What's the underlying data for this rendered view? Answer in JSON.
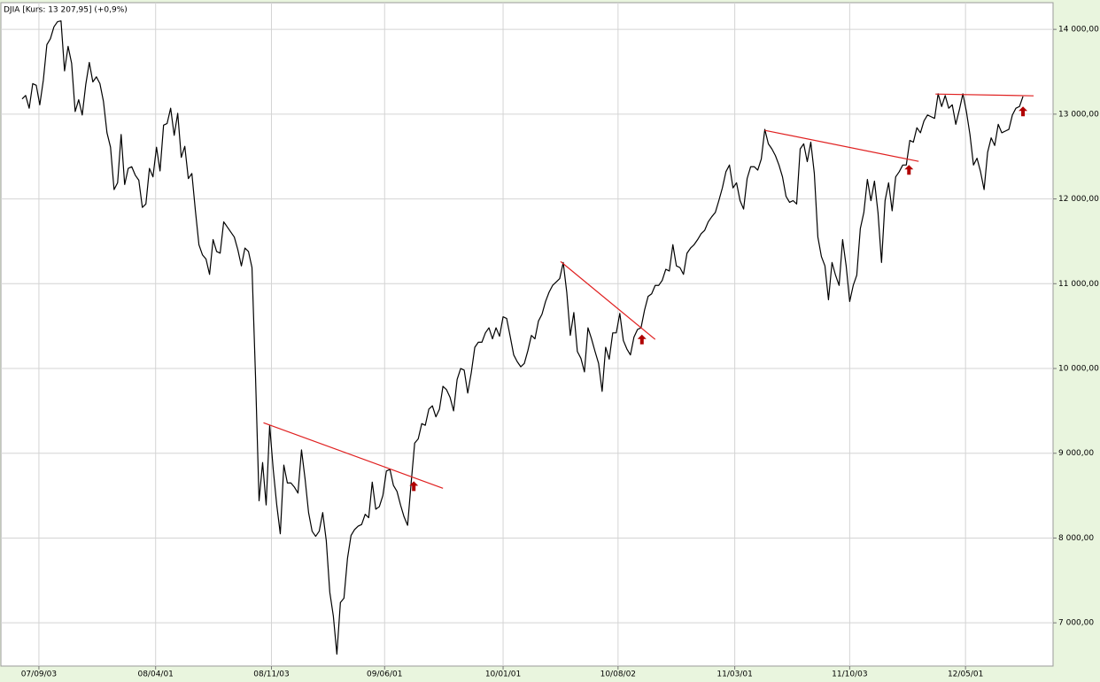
{
  "chart_data": {
    "type": "line",
    "title": "DJIA [Kurs: 13 207,95] (+0,9%)",
    "color": "#000000",
    "trend_color": "#e02020",
    "signal_color": "#b00000",
    "grid": true,
    "xlim": [
      -6,
      291.5
    ],
    "ylim": [
      6490,
      14315
    ],
    "xticks": [
      {
        "value": 4.75,
        "label": "07/09/03"
      },
      {
        "value": 37.75,
        "label": "08/04/01"
      },
      {
        "value": 70.5,
        "label": "08/11/03"
      },
      {
        "value": 102.5,
        "label": "09/06/01"
      },
      {
        "value": 136,
        "label": "10/01/01"
      },
      {
        "value": 168.5,
        "label": "10/08/02"
      },
      {
        "value": 201.5,
        "label": "11/03/01"
      },
      {
        "value": 234,
        "label": "11/10/03"
      },
      {
        "value": 266.75,
        "label": "12/05/01"
      }
    ],
    "yticks": [
      {
        "value": 7000,
        "label": "7 000,00"
      },
      {
        "value": 8000,
        "label": "8 000,00"
      },
      {
        "value": 9000,
        "label": "9 000,00"
      },
      {
        "value": 10000,
        "label": "10 000,00"
      },
      {
        "value": 11000,
        "label": "11 000,00"
      },
      {
        "value": 12000,
        "label": "12 000,00"
      },
      {
        "value": 13000,
        "label": "13 000,00"
      },
      {
        "value": 14000,
        "label": "14 000,00"
      }
    ],
    "values": [
      13180,
      13220,
      13070,
      13360,
      13340,
      13110,
      13400,
      13820,
      13890,
      14030,
      14090,
      14100,
      13510,
      13800,
      13600,
      13030,
      13170,
      12990,
      13350,
      13610,
      13380,
      13440,
      13360,
      13150,
      12780,
      12610,
      12110,
      12190,
      12760,
      12170,
      12360,
      12380,
      12280,
      12220,
      11900,
      11940,
      12360,
      12260,
      12610,
      12330,
      12870,
      12890,
      13070,
      12750,
      13010,
      12490,
      12620,
      12240,
      12300,
      11860,
      11460,
      11340,
      11290,
      11110,
      11520,
      11380,
      11360,
      11730,
      11670,
      11610,
      11550,
      11400,
      11210,
      11420,
      11380,
      11190,
      9900,
      8440,
      8890,
      8390,
      9330,
      8810,
      8390,
      8050,
      8860,
      8650,
      8650,
      8600,
      8530,
      9040,
      8700,
      8300,
      8080,
      8020,
      8080,
      8300,
      7970,
      7360,
      7080,
      6630,
      7240,
      7290,
      7760,
      8030,
      8100,
      8140,
      8160,
      8280,
      8240,
      8660,
      8340,
      8370,
      8500,
      8790,
      8810,
      8620,
      8550,
      8390,
      8250,
      8150,
      8650,
      9120,
      9170,
      9350,
      9330,
      9520,
      9560,
      9430,
      9520,
      9790,
      9750,
      9660,
      9500,
      9870,
      10000,
      9980,
      9710,
      9950,
      10250,
      10310,
      10310,
      10420,
      10480,
      10350,
      10480,
      10380,
      10610,
      10590,
      10380,
      10160,
      10080,
      10020,
      10060,
      10210,
      10390,
      10350,
      10560,
      10640,
      10790,
      10900,
      10980,
      11020,
      11060,
      11250,
      10900,
      10390,
      10660,
      10200,
      10120,
      9960,
      10480,
      10350,
      10200,
      10060,
      9730,
      10250,
      10110,
      10420,
      10420,
      10650,
      10330,
      10230,
      10160,
      10370,
      10460,
      10480,
      10690,
      10850,
      10880,
      10980,
      10980,
      11040,
      11170,
      11150,
      11460,
      11210,
      11190,
      11110,
      11360,
      11420,
      11460,
      11520,
      11590,
      11630,
      11730,
      11790,
      11840,
      11980,
      12130,
      12320,
      12400,
      12130,
      12190,
      11980,
      11880,
      12240,
      12380,
      12380,
      12340,
      12470,
      12820,
      12650,
      12590,
      12510,
      12400,
      12260,
      12030,
      11960,
      11980,
      11940,
      12590,
      12650,
      12440,
      12670,
      12300,
      11550,
      11320,
      11210,
      10810,
      11250,
      11100,
      10980,
      11520,
      11210,
      10790,
      10980,
      11100,
      11650,
      11840,
      12230,
      11980,
      12210,
      11840,
      11250,
      11980,
      12190,
      11860,
      12260,
      12320,
      12400,
      12400,
      12690,
      12670,
      12840,
      12780,
      12920,
      12990,
      12970,
      12950,
      13240,
      13090,
      13220,
      13070,
      13110,
      12880,
      13050,
      13240,
      13030,
      12760,
      12400,
      12480,
      12320,
      12110,
      12550,
      12720,
      12630,
      12880,
      12780,
      12800,
      12820,
      12990,
      13070,
      13090,
      13210
    ],
    "trendlines": [
      {
        "x": [
          68.25,
          119
        ],
        "y": [
          9360,
          8587
        ]
      },
      {
        "x": [
          152.25,
          179
        ],
        "y": [
          11262,
          10343
        ]
      },
      {
        "x": [
          210,
          253.5
        ],
        "y": [
          12809,
          12443
        ]
      },
      {
        "x": [
          258.25,
          286
        ],
        "y": [
          13237,
          13216
        ]
      }
    ],
    "signals": {
      "x": [
        110.75,
        175.25,
        250.75,
        283
      ],
      "y": [
        8670,
        10400,
        12400,
        13090
      ]
    }
  }
}
